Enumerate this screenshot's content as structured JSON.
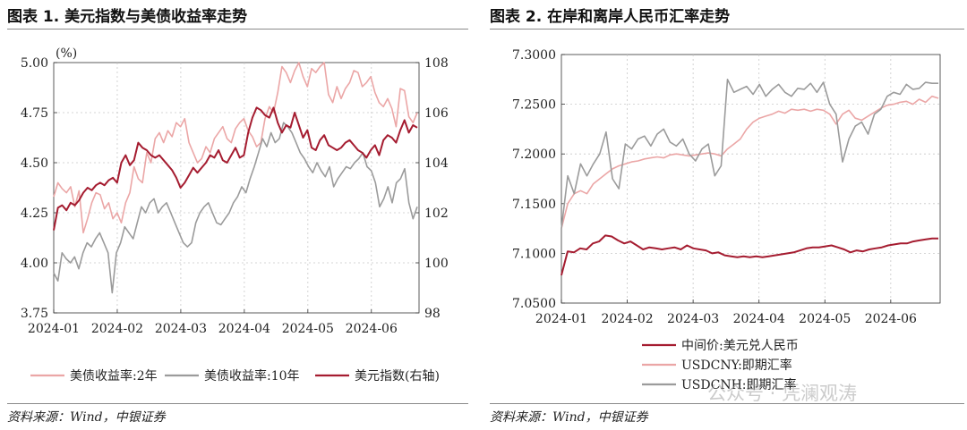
{
  "left": {
    "title": "图表 1. 美元指数与美债收益率走势",
    "source": "资料来源：Wind，中银证券",
    "unit_label": "(%)"
  },
  "right": {
    "title": "图表 2. 在岸和离岸人民币汇率走势",
    "source": "资料来源：Wind，中银证券"
  },
  "watermark": "公众号 · 凭澜观涛",
  "colors": {
    "red": "#a51c30",
    "pink": "#eba6a6",
    "gray": "#9b9b9b"
  },
  "chart_data": [
    {
      "type": "line",
      "title": "",
      "x_ticks": [
        "2024-01",
        "2024-02",
        "2024-03",
        "2024-04",
        "2024-05",
        "2024-06"
      ],
      "ylim_left": [
        3.75,
        5.0
      ],
      "yticks_left": [
        "3.75",
        "4.00",
        "4.25",
        "4.50",
        "4.75",
        "5.00"
      ],
      "ylim_right": [
        98,
        108
      ],
      "yticks_right": [
        "98",
        "100",
        "102",
        "104",
        "106",
        "108"
      ],
      "grid": true,
      "legend_position": "bottom",
      "series": [
        {
          "name": "美债收益率:2年",
          "color": "#eba6a6",
          "axis": "left",
          "values": [
            4.33,
            4.4,
            4.37,
            4.35,
            4.38,
            4.28,
            4.36,
            4.15,
            4.22,
            4.3,
            4.35,
            4.34,
            4.27,
            4.3,
            4.22,
            4.25,
            4.2,
            4.3,
            4.35,
            4.48,
            4.42,
            4.4,
            4.55,
            4.5,
            4.62,
            4.65,
            4.6,
            4.66,
            4.63,
            4.7,
            4.68,
            4.72,
            4.6,
            4.55,
            4.5,
            4.52,
            4.58,
            4.55,
            4.62,
            4.65,
            4.68,
            4.62,
            4.6,
            4.67,
            4.7,
            4.72,
            4.66,
            4.63,
            4.58,
            4.6,
            4.72,
            4.78,
            4.75,
            4.85,
            4.98,
            4.95,
            4.9,
            4.96,
            5.0,
            4.93,
            4.88,
            4.97,
            4.95,
            4.98,
            5.0,
            4.84,
            4.8,
            4.88,
            4.82,
            4.87,
            4.9,
            4.96,
            4.95,
            4.88,
            4.9,
            4.93,
            4.85,
            4.8,
            4.78,
            4.82,
            4.77,
            4.68,
            4.87,
            4.86,
            4.73,
            4.7,
            4.75
          ]
        },
        {
          "name": "美债收益率:10年",
          "color": "#9b9b9b",
          "axis": "left",
          "values": [
            3.95,
            3.91,
            4.05,
            4.02,
            4.0,
            4.03,
            3.97,
            4.05,
            4.1,
            4.08,
            4.12,
            4.15,
            4.1,
            4.05,
            3.85,
            4.05,
            4.1,
            4.18,
            4.15,
            4.12,
            4.2,
            4.28,
            4.25,
            4.3,
            4.32,
            4.25,
            4.28,
            4.3,
            4.25,
            4.2,
            4.15,
            4.1,
            4.08,
            4.1,
            4.2,
            4.25,
            4.28,
            4.3,
            4.25,
            4.2,
            4.19,
            4.22,
            4.25,
            4.3,
            4.33,
            4.38,
            4.35,
            4.42,
            4.48,
            4.55,
            4.62,
            4.58,
            4.65,
            4.6,
            4.62,
            4.7,
            4.68,
            4.65,
            4.6,
            4.55,
            4.52,
            4.48,
            4.45,
            4.5,
            4.46,
            4.43,
            4.48,
            4.38,
            4.42,
            4.45,
            4.48,
            4.47,
            4.5,
            4.52,
            4.55,
            4.48,
            4.46,
            4.4,
            4.28,
            4.32,
            4.38,
            4.3,
            4.4,
            4.42,
            4.47,
            4.3,
            4.22,
            4.28
          ]
        },
        {
          "name": "美元指数(右轴)",
          "color": "#a51c30",
          "axis": "right",
          "values": [
            101.3,
            102.2,
            102.3,
            102.1,
            102.4,
            102.3,
            102.5,
            102.8,
            103.0,
            102.9,
            103.1,
            103.2,
            103.1,
            103.3,
            103.4,
            103.2,
            104.0,
            104.3,
            103.9,
            104.1,
            104.8,
            104.6,
            104.5,
            104.3,
            104.2,
            104.3,
            104.1,
            103.9,
            103.7,
            103.4,
            103.0,
            103.2,
            103.5,
            103.8,
            103.6,
            103.8,
            104.0,
            104.3,
            104.2,
            104.5,
            104.1,
            104.0,
            104.3,
            104.6,
            104.2,
            104.3,
            105.2,
            105.8,
            106.2,
            106.1,
            105.9,
            105.8,
            106.2,
            105.6,
            105.2,
            105.5,
            105.4,
            106.0,
            105.5,
            105.0,
            105.3,
            104.6,
            104.5,
            104.9,
            105.1,
            104.7,
            104.6,
            104.5,
            104.6,
            104.8,
            104.9,
            104.7,
            104.5,
            104.4,
            104.2,
            104.5,
            104.7,
            104.3,
            104.9,
            105.1,
            105.0,
            104.8,
            105.3,
            105.7,
            105.2,
            105.5,
            105.4
          ]
        }
      ]
    },
    {
      "type": "line",
      "title": "",
      "x_ticks": [
        "2024-01",
        "2024-02",
        "2024-03",
        "2024-04",
        "2024-05",
        "2024-06"
      ],
      "ylim": [
        7.05,
        7.3
      ],
      "yticks": [
        "7.0500",
        "7.1000",
        "7.1500",
        "7.2000",
        "7.2500",
        "7.3000"
      ],
      "grid": true,
      "legend_position": "bottom",
      "series": [
        {
          "name": "中间价:美元兑人民币",
          "color": "#a51c30",
          "values": [
            7.078,
            7.102,
            7.101,
            7.105,
            7.104,
            7.11,
            7.112,
            7.118,
            7.117,
            7.113,
            7.11,
            7.112,
            7.108,
            7.104,
            7.106,
            7.105,
            7.104,
            7.105,
            7.106,
            7.104,
            7.108,
            7.105,
            7.104,
            7.103,
            7.1,
            7.101,
            7.098,
            7.097,
            7.096,
            7.097,
            7.096,
            7.097,
            7.096,
            7.097,
            7.098,
            7.099,
            7.1,
            7.101,
            7.103,
            7.105,
            7.106,
            7.106,
            7.107,
            7.108,
            7.106,
            7.104,
            7.101,
            7.103,
            7.102,
            7.104,
            7.105,
            7.106,
            7.108,
            7.109,
            7.11,
            7.11,
            7.112,
            7.113,
            7.114,
            7.115,
            7.115
          ]
        },
        {
          "name": "USDCNY:即期汇率",
          "color": "#eba6a6",
          "values": [
            7.125,
            7.15,
            7.16,
            7.163,
            7.16,
            7.17,
            7.175,
            7.18,
            7.185,
            7.188,
            7.19,
            7.192,
            7.193,
            7.195,
            7.196,
            7.197,
            7.196,
            7.199,
            7.2,
            7.199,
            7.198,
            7.199,
            7.2,
            7.201,
            7.2,
            7.198,
            7.205,
            7.21,
            7.215,
            7.225,
            7.232,
            7.236,
            7.238,
            7.24,
            7.243,
            7.241,
            7.245,
            7.244,
            7.245,
            7.243,
            7.245,
            7.244,
            7.24,
            7.23,
            7.24,
            7.244,
            7.236,
            7.234,
            7.238,
            7.242,
            7.246,
            7.249,
            7.25,
            7.252,
            7.253,
            7.25,
            7.255,
            7.252,
            7.258,
            7.256
          ]
        },
        {
          "name": "USDCNH:即期汇率",
          "color": "#9b9b9b",
          "values": [
            7.125,
            7.178,
            7.16,
            7.19,
            7.178,
            7.19,
            7.2,
            7.222,
            7.175,
            7.165,
            7.21,
            7.205,
            7.215,
            7.218,
            7.208,
            7.22,
            7.225,
            7.212,
            7.208,
            7.215,
            7.2,
            7.193,
            7.205,
            7.21,
            7.178,
            7.188,
            7.275,
            7.262,
            7.265,
            7.268,
            7.26,
            7.27,
            7.258,
            7.265,
            7.27,
            7.262,
            7.258,
            7.266,
            7.265,
            7.271,
            7.262,
            7.272,
            7.25,
            7.24,
            7.192,
            7.215,
            7.228,
            7.232,
            7.22,
            7.24,
            7.245,
            7.258,
            7.262,
            7.26,
            7.27,
            7.265,
            7.266,
            7.272,
            7.271,
            7.271
          ]
        }
      ]
    }
  ]
}
